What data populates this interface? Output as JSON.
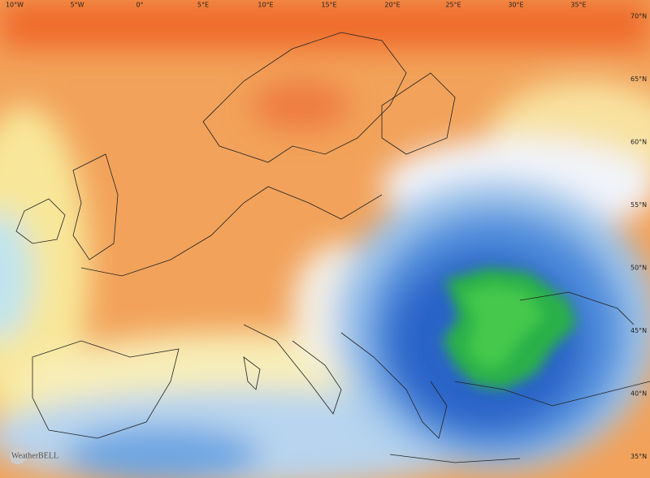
{
  "longitude_labels": [
    "10°W",
    "5°W",
    "0°",
    "5°E",
    "10°E",
    "15°E",
    "20°E",
    "25°E",
    "30°E",
    "35°E"
  ],
  "latitude_labels": [
    "70°N",
    "65°N",
    "60°N",
    "55°N",
    "50°N",
    "45°N",
    "40°N",
    "35°N"
  ],
  "watermark": "WeatherBELL"
}
